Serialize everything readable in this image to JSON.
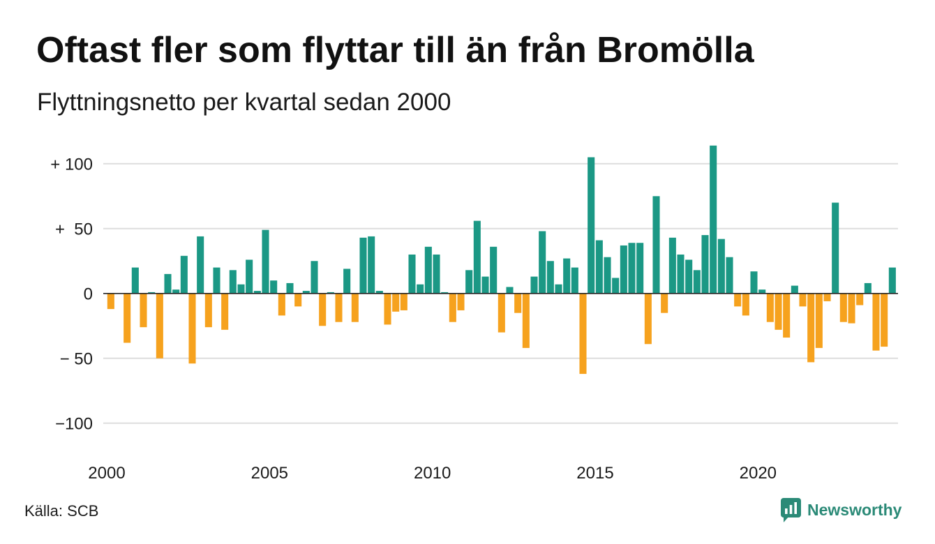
{
  "chart_data": {
    "type": "bar",
    "title": "Oftast fler som flyttar till än från Bromölla",
    "subtitle": "Flyttningsnetto per kvartal sedan 2000",
    "xlabel": "",
    "ylabel": "",
    "x": [
      "2000-Q1",
      "2000-Q2",
      "2000-Q3",
      "2000-Q4",
      "2001-Q1",
      "2001-Q2",
      "2001-Q3",
      "2001-Q4",
      "2002-Q1",
      "2002-Q2",
      "2002-Q3",
      "2002-Q4",
      "2003-Q1",
      "2003-Q2",
      "2003-Q3",
      "2003-Q4",
      "2004-Q1",
      "2004-Q2",
      "2004-Q3",
      "2004-Q4",
      "2005-Q1",
      "2005-Q2",
      "2005-Q3",
      "2005-Q4",
      "2006-Q1",
      "2006-Q2",
      "2006-Q3",
      "2006-Q4",
      "2007-Q1",
      "2007-Q2",
      "2007-Q3",
      "2007-Q4",
      "2008-Q1",
      "2008-Q2",
      "2008-Q3",
      "2008-Q4",
      "2009-Q1",
      "2009-Q2",
      "2009-Q3",
      "2009-Q4",
      "2010-Q1",
      "2010-Q2",
      "2010-Q3",
      "2010-Q4",
      "2011-Q1",
      "2011-Q2",
      "2011-Q3",
      "2011-Q4",
      "2012-Q1",
      "2012-Q2",
      "2012-Q3",
      "2012-Q4",
      "2013-Q1",
      "2013-Q2",
      "2013-Q3",
      "2013-Q4",
      "2014-Q1",
      "2014-Q2",
      "2014-Q3",
      "2014-Q4",
      "2015-Q1",
      "2015-Q2",
      "2015-Q3",
      "2015-Q4",
      "2016-Q1",
      "2016-Q2",
      "2016-Q3",
      "2016-Q4",
      "2017-Q1",
      "2017-Q2",
      "2017-Q3",
      "2017-Q4",
      "2018-Q1",
      "2018-Q2",
      "2018-Q3",
      "2018-Q4",
      "2019-Q1",
      "2019-Q2",
      "2019-Q3",
      "2019-Q4",
      "2020-Q1",
      "2020-Q2",
      "2020-Q3",
      "2020-Q4",
      "2021-Q1",
      "2021-Q2",
      "2021-Q3",
      "2021-Q4",
      "2022-Q1",
      "2022-Q2",
      "2022-Q3",
      "2022-Q4",
      "2023-Q1",
      "2023-Q2",
      "2023-Q3",
      "2023-Q4",
      "2024-Q1"
    ],
    "values": [
      -12,
      0,
      -38,
      20,
      -26,
      1,
      -50,
      15,
      3,
      29,
      -54,
      44,
      -26,
      20,
      -28,
      18,
      7,
      26,
      2,
      49,
      10,
      -17,
      8,
      -10,
      2,
      25,
      -25,
      1,
      -22,
      19,
      -22,
      43,
      44,
      2,
      -24,
      -14,
      -13,
      30,
      7,
      36,
      30,
      1,
      -22,
      -13,
      18,
      56,
      13,
      36,
      -30,
      5,
      -15,
      -42,
      13,
      48,
      25,
      7,
      27,
      20,
      -62,
      105,
      41,
      28,
      12,
      37,
      39,
      39,
      -39,
      75,
      -15,
      43,
      30,
      26,
      18,
      45,
      114,
      42,
      28,
      -10,
      -17,
      17,
      3,
      -22,
      -28,
      -34,
      6,
      -10,
      -53,
      -42,
      -6,
      70,
      -22,
      -23,
      -9,
      8,
      -44,
      -41,
      20
    ],
    "ylim": [
      -120,
      116
    ],
    "yticks": [
      {
        "value": 100,
        "label": "+ 100"
      },
      {
        "value": 50,
        "label": "+  50"
      },
      {
        "value": 0,
        "label": "0"
      },
      {
        "value": -50,
        "label": "− 50"
      },
      {
        "value": -100,
        "label": "−100"
      }
    ],
    "xticks": [
      {
        "value": 2000,
        "label": "2000"
      },
      {
        "value": 2005,
        "label": "2005"
      },
      {
        "value": 2010,
        "label": "2010"
      },
      {
        "value": 2015,
        "label": "2015"
      },
      {
        "value": 2020,
        "label": "2020"
      }
    ],
    "grid": true,
    "legend": "none",
    "colors": {
      "positive": "#1b9885",
      "negative": "#f6a21e",
      "grid": "#dddddd",
      "zero_line": "#222222"
    }
  },
  "source": "Källa: SCB",
  "brand": {
    "name": "Newsworthy",
    "icon": "newsworthy-logo-icon",
    "color": "#2b8a77"
  }
}
